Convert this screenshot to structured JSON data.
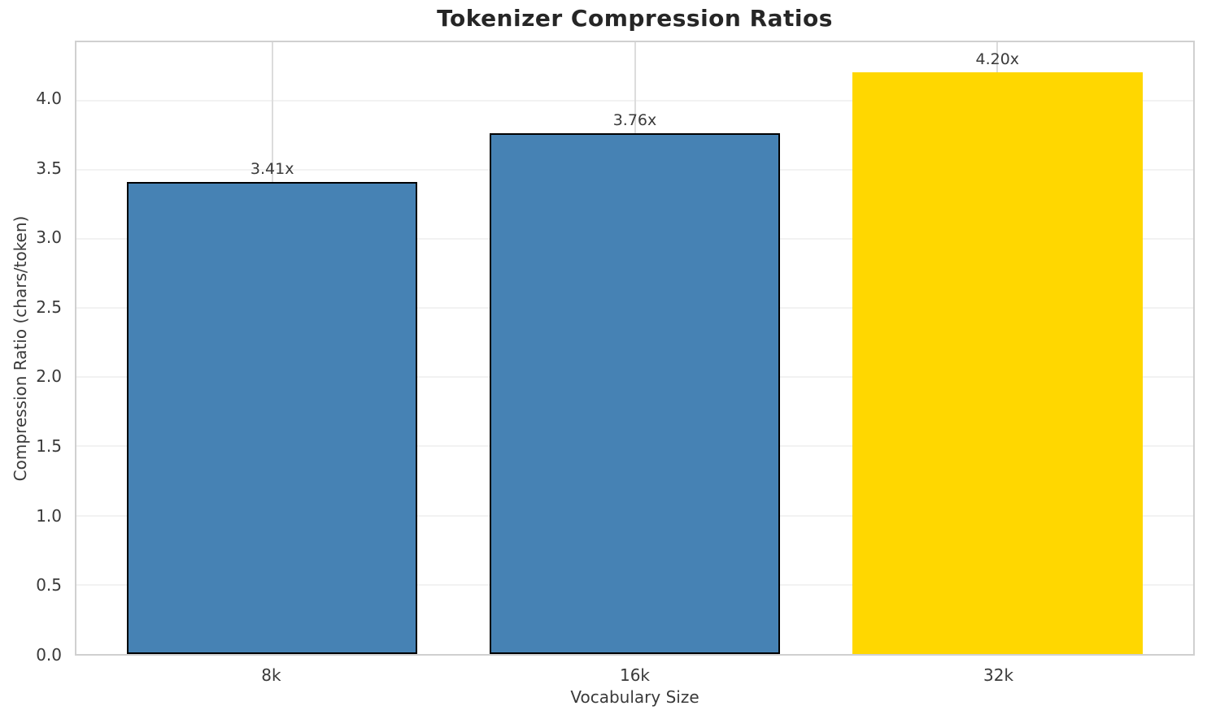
{
  "chart_data": {
    "type": "bar",
    "title": "Tokenizer Compression Ratios",
    "xlabel": "Vocabulary Size",
    "ylabel": "Compression Ratio (chars/token)",
    "categories": [
      "8k",
      "16k",
      "32k"
    ],
    "values": [
      3.41,
      3.76,
      4.2
    ],
    "bar_labels": [
      "3.41x",
      "3.76x",
      "4.20x"
    ],
    "bar_colors": [
      "#4682B4",
      "#4682B4",
      "#FFD700"
    ],
    "bar_edge_colors": [
      "#000000",
      "#000000",
      "#FFD700"
    ],
    "yticks": [
      0,
      0.5,
      1,
      1.5,
      2,
      2.5,
      3,
      3.5,
      4
    ],
    "ytick_labels": [
      "0.0",
      "0.5",
      "1.0",
      "1.5",
      "2.0",
      "2.5",
      "3.0",
      "3.5",
      "4.0"
    ],
    "ylim": [
      0,
      4.42
    ],
    "grid": true,
    "legend_position": "none"
  },
  "style": {
    "background": "#ffffff",
    "spine_color": "#d0d0d0",
    "grid_h_color": "#f2f2f2",
    "grid_v_color": "#dcdcdc",
    "text_color": "#3a3a3a",
    "title_color": "#262626",
    "bar_primary": "#4682B4",
    "bar_highlight": "#FFD700"
  }
}
